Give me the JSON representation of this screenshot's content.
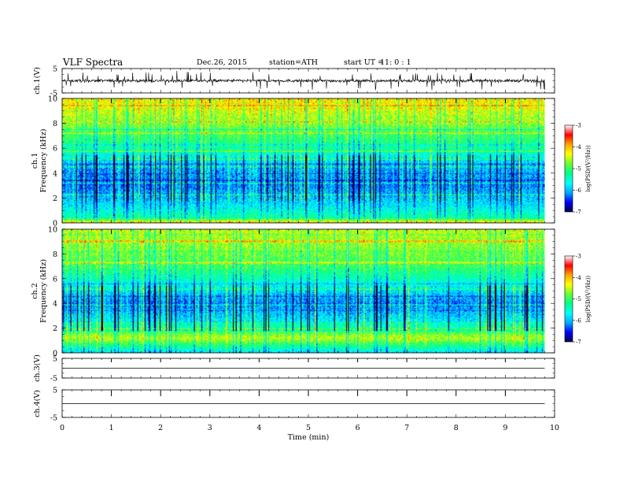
{
  "header": {
    "title": "VLF  Spectra",
    "date": "Dec.26, 2015",
    "station": "station=ATH",
    "start_label": "start  UT  =",
    "start_value": "11: 0  : 1"
  },
  "chart_data": [
    {
      "type": "line",
      "panel": "ch1-waveform",
      "ylabel": "ch.1(V)",
      "ylim": [
        -5,
        5
      ],
      "yticks": [
        "5",
        "-5"
      ],
      "xlim": [
        0,
        10
      ],
      "color": "#000000",
      "series": [
        {
          "baseline": 0.0,
          "noise_amplitude": 0.6,
          "spike_amplitude": 3.5,
          "end_min": 9.8
        }
      ]
    },
    {
      "type": "heatmap",
      "panel": "ch1-spectrogram",
      "ylabel_1": "ch.1",
      "ylabel_2": "Frequency  (kHz)",
      "ylim": [
        0,
        10
      ],
      "yticks": [
        "0",
        "2",
        "4",
        "6",
        "8",
        "10"
      ],
      "xlim": [
        0,
        10
      ],
      "data_end_min": 9.8,
      "colorbar": {
        "label": "log(PSD/(V²/Hz))",
        "range": [
          -7,
          -3
        ],
        "ticks": [
          "-3",
          "-4",
          "-5",
          "-6",
          "-7"
        ]
      },
      "mean_logpsd_profile": [
        {
          "f": 0.0,
          "v": -4.0
        },
        {
          "f": 0.4,
          "v": -5.3
        },
        {
          "f": 1.5,
          "v": -5.8
        },
        {
          "f": 3.0,
          "v": -6.2
        },
        {
          "f": 4.5,
          "v": -6.0
        },
        {
          "f": 6.0,
          "v": -5.3
        },
        {
          "f": 8.0,
          "v": -4.7
        },
        {
          "f": 10.0,
          "v": -4.2
        }
      ]
    },
    {
      "type": "heatmap",
      "panel": "ch2-spectrogram",
      "ylabel_1": "ch.2",
      "ylabel_2": "Frequency  (kHz)",
      "ylim": [
        0,
        10
      ],
      "yticks": [
        "0",
        "2",
        "4",
        "6",
        "8",
        "10"
      ],
      "xlim": [
        0,
        10
      ],
      "data_end_min": 9.8,
      "colorbar": {
        "label": "log(PSD/(V²/Hz))",
        "range": [
          -7,
          -3
        ],
        "ticks": [
          "-3",
          "-4",
          "-5",
          "-6",
          "-7"
        ]
      },
      "mean_logpsd_profile": [
        {
          "f": 0.0,
          "v": -5.8
        },
        {
          "f": 1.2,
          "v": -4.5
        },
        {
          "f": 2.5,
          "v": -5.7
        },
        {
          "f": 4.0,
          "v": -6.2
        },
        {
          "f": 5.5,
          "v": -5.6
        },
        {
          "f": 7.0,
          "v": -5.0
        },
        {
          "f": 8.5,
          "v": -4.7
        },
        {
          "f": 10.0,
          "v": -4.5
        }
      ]
    },
    {
      "type": "line",
      "panel": "ch3-waveform",
      "ylabel": "ch.3(V)",
      "ylim": [
        -5,
        5
      ],
      "yticks": [
        "5",
        "-5"
      ],
      "xlim": [
        0,
        10
      ],
      "series": [
        {
          "baseline": 0.0,
          "end_min": 9.8
        }
      ]
    },
    {
      "type": "line",
      "panel": "ch4-waveform",
      "ylabel": "ch.4(V)",
      "ylim": [
        -5,
        5
      ],
      "yticks": [
        "5",
        "-5"
      ],
      "xlim": [
        0,
        10
      ],
      "series": [
        {
          "baseline": 0.0,
          "end_min": 9.8
        }
      ]
    }
  ],
  "xaxis": {
    "label": "Time  (min)",
    "ticks": [
      "0",
      "1",
      "2",
      "3",
      "4",
      "5",
      "6",
      "7",
      "8",
      "9",
      "10"
    ],
    "range": [
      0,
      10
    ],
    "minute_marker_times": [
      1,
      2,
      3,
      4,
      5,
      6,
      7,
      8,
      9
    ]
  },
  "colormap": [
    "#000044",
    "#0000ff",
    "#00aaff",
    "#00ffff",
    "#00ff88",
    "#66ff33",
    "#ffff00",
    "#ffa500",
    "#ff0000",
    "#ffffff"
  ]
}
